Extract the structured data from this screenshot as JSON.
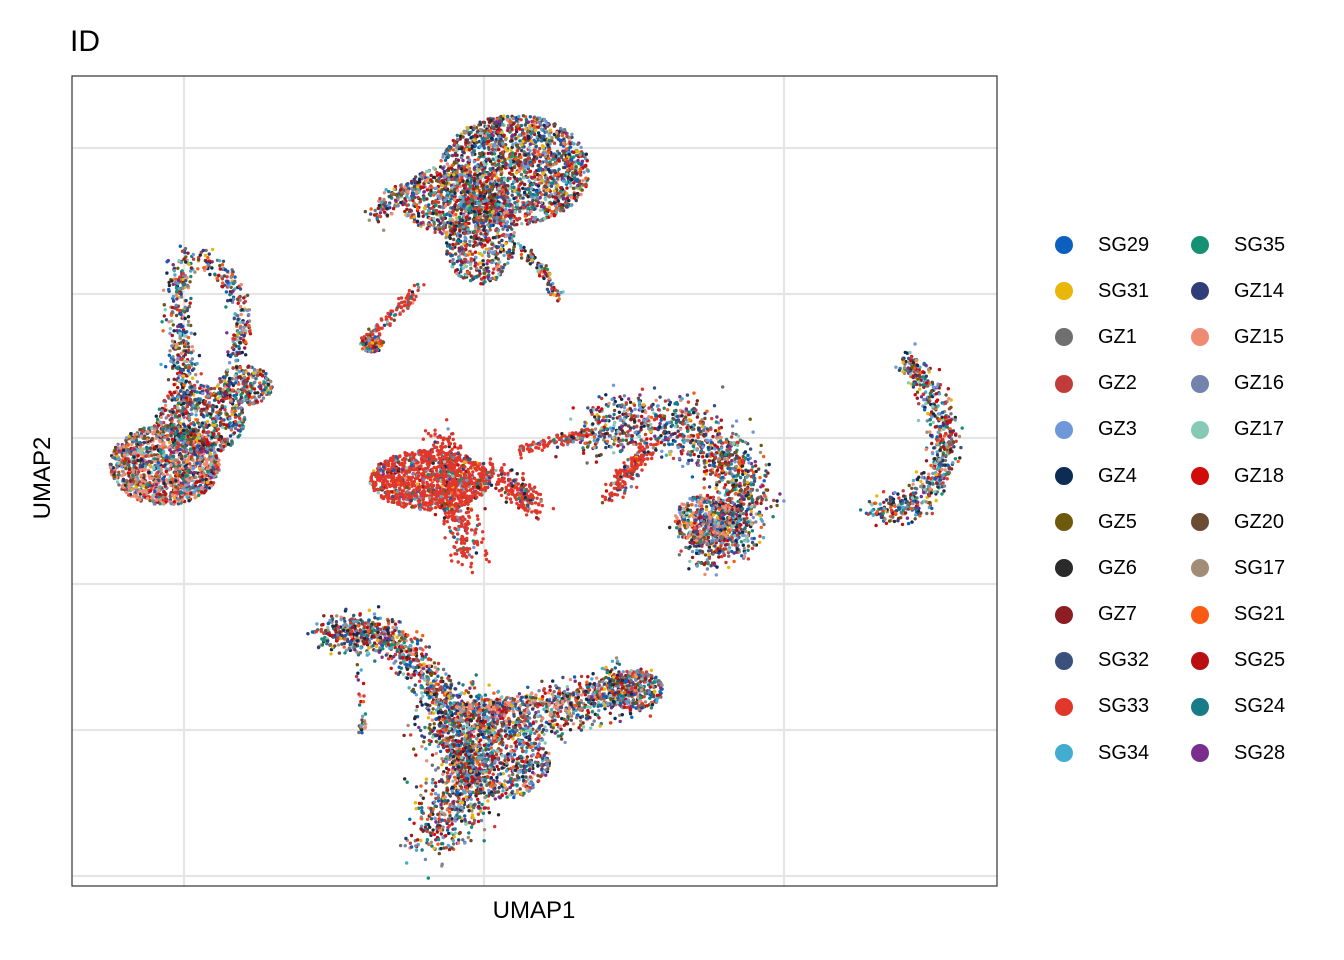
{
  "chart_data": {
    "type": "scatter",
    "title": "ID",
    "xlabel": "UMAP1",
    "ylabel": "UMAP2",
    "x_tick_labels": [],
    "y_tick_labels": [],
    "grid": true,
    "legend_position": "right",
    "legend_columns": 2,
    "series": [
      {
        "name": "SG29",
        "color": "#0B5FBF"
      },
      {
        "name": "SG31",
        "color": "#E8B70A"
      },
      {
        "name": "GZ1",
        "color": "#6F6F6F"
      },
      {
        "name": "GZ2",
        "color": "#C23B3B"
      },
      {
        "name": "GZ3",
        "color": "#6E98D8"
      },
      {
        "name": "GZ4",
        "color": "#0C2B55"
      },
      {
        "name": "GZ5",
        "color": "#6E5A0D"
      },
      {
        "name": "GZ6",
        "color": "#2A2A2A"
      },
      {
        "name": "GZ7",
        "color": "#8C1D22"
      },
      {
        "name": "SG32",
        "color": "#3A517D"
      },
      {
        "name": "SG33",
        "color": "#E1372B"
      },
      {
        "name": "SG34",
        "color": "#42ADD0"
      },
      {
        "name": "SG35",
        "color": "#149173"
      },
      {
        "name": "GZ14",
        "color": "#2F3D79"
      },
      {
        "name": "GZ15",
        "color": "#F08B73"
      },
      {
        "name": "GZ16",
        "color": "#7283AD"
      },
      {
        "name": "GZ17",
        "color": "#86C9B4"
      },
      {
        "name": "GZ18",
        "color": "#D10A0A"
      },
      {
        "name": "GZ20",
        "color": "#6A4B34"
      },
      {
        "name": "SG17",
        "color": "#A38C75"
      },
      {
        "name": "SG21",
        "color": "#FA5A12"
      },
      {
        "name": "SG25",
        "color": "#B90F12"
      },
      {
        "name": "SG24",
        "color": "#177C88"
      },
      {
        "name": "SG28",
        "color": "#7A2E8C"
      }
    ]
  }
}
